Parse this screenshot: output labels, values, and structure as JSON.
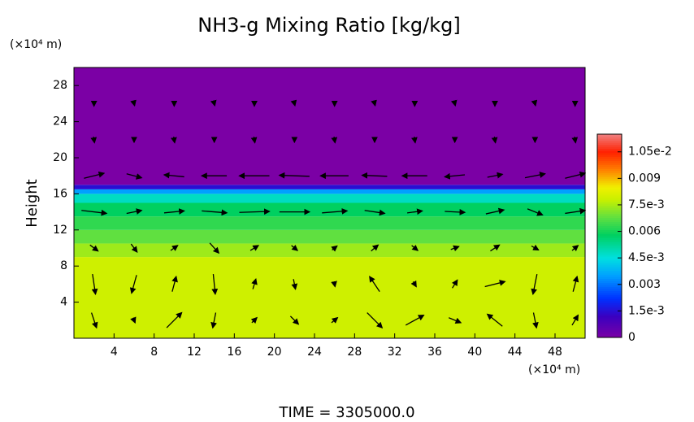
{
  "chart_data": {
    "type": "contour_profile",
    "title": "NH3-g Mixing Ratio [kg/kg]",
    "ylabel": "Height",
    "y_unit": "(×10⁴ m)",
    "x_unit": "(×10⁴ m)",
    "footer": "TIME = 3305000.0",
    "xlim": [
      0,
      51
    ],
    "ylim": [
      0,
      30
    ],
    "xticks": [
      4,
      8,
      12,
      16,
      20,
      24,
      28,
      32,
      36,
      40,
      44,
      48
    ],
    "yticks": [
      4,
      8,
      12,
      16,
      20,
      24,
      28
    ],
    "height_edges": [
      0,
      9,
      10.5,
      12,
      13.5,
      15,
      16,
      16.5,
      17,
      30
    ],
    "values": [
      0.0079,
      0.0074,
      0.0068,
      0.0063,
      0.0058,
      0.0048,
      0.0035,
      0.0015,
      0
    ],
    "clim": [
      0,
      0.0115
    ],
    "colormap": [
      [
        0,
        "#7b00a5"
      ],
      [
        0.0012,
        "#3a00c0"
      ],
      [
        0.0022,
        "#0030ff"
      ],
      [
        0.0035,
        "#00a0ff"
      ],
      [
        0.0045,
        "#00e0e0"
      ],
      [
        0.0058,
        "#00d060"
      ],
      [
        0.0068,
        "#60e040"
      ],
      [
        0.0078,
        "#c8f000"
      ],
      [
        0.0085,
        "#f0f000"
      ],
      [
        0.0095,
        "#ff8000"
      ],
      [
        0.0105,
        "#ff2000"
      ],
      [
        0.0115,
        "#f08080"
      ]
    ],
    "cticks": [
      0,
      {
        "value": 0.0015,
        "label": "1.5e-3"
      },
      0.003,
      {
        "value": 0.0045,
        "label": "4.5e-3"
      },
      0.006,
      {
        "value": 0.0075,
        "label": "7.5e-3"
      },
      0.009,
      {
        "value": 0.0105,
        "label": "1.05e-2"
      }
    ],
    "vectors": {
      "x": [
        2,
        6,
        10,
        14,
        18,
        22,
        26,
        30,
        34,
        38,
        42,
        46,
        50
      ],
      "y": [
        2,
        6,
        10,
        14,
        18,
        22,
        26
      ],
      "u": [
        [
          0.5,
          0.2,
          1.5,
          -0.3,
          0.5,
          0.8,
          0.6,
          1.5,
          1.8,
          1.2,
          -1.5,
          0.3,
          0.6
        ],
        [
          0.3,
          -0.5,
          0.4,
          0.2,
          0.3,
          0.2,
          0.1,
          -1.0,
          0.3,
          0.5,
          2.0,
          -0.4,
          0.4
        ],
        [
          0.8,
          0.6,
          0.7,
          0.9,
          0.8,
          0.6,
          0.5,
          0.7,
          0.6,
          0.8,
          0.9,
          0.7,
          0.6
        ],
        [
          2.5,
          1.5,
          2.0,
          2.5,
          3.0,
          3.0,
          2.5,
          2.0,
          1.5,
          2.0,
          1.8,
          1.5,
          2.0
        ],
        [
          2.0,
          1.5,
          -2.0,
          -2.5,
          -3.0,
          -3.0,
          -2.8,
          -2.5,
          -2.5,
          -2.0,
          1.5,
          2.0,
          2.0
        ],
        [
          0.1,
          0.0,
          0.1,
          0.0,
          0.1,
          0.0,
          0.1,
          0.0,
          0.1,
          0.0,
          0.1,
          0.0,
          0.1
        ],
        [
          0.0,
          0.1,
          0.0,
          0.1,
          0.0,
          0.1,
          0.0,
          0.1,
          0.0,
          0.1,
          0.0,
          0.1,
          0.0
        ]
      ],
      "v": [
        [
          -1.5,
          -0.5,
          1.5,
          -1.5,
          0.5,
          -0.8,
          0.5,
          -1.5,
          1.0,
          -0.5,
          1.2,
          -1.5,
          1.0
        ],
        [
          -2.0,
          -1.8,
          1.5,
          -2.0,
          1.0,
          -1.0,
          -0.5,
          1.5,
          -0.5,
          0.8,
          0.5,
          -2.0,
          1.5
        ],
        [
          -0.6,
          -0.8,
          0.5,
          -1.0,
          0.5,
          -0.5,
          0.4,
          0.6,
          -0.5,
          0.3,
          0.6,
          -0.4,
          0.5
        ],
        [
          -0.3,
          0.3,
          0.2,
          -0.2,
          0.1,
          0.0,
          0.2,
          -0.3,
          0.2,
          -0.1,
          0.4,
          -0.6,
          0.3
        ],
        [
          0.5,
          -0.4,
          0.2,
          0.0,
          0.0,
          0.1,
          0.0,
          0.1,
          0.0,
          -0.2,
          0.3,
          0.4,
          0.5
        ],
        [
          -0.6,
          -0.5,
          -0.6,
          -0.5,
          -0.6,
          -0.5,
          -0.6,
          -0.5,
          -0.6,
          -0.5,
          -0.6,
          -0.5,
          -0.6
        ],
        [
          -0.5,
          -0.4,
          -0.5,
          -0.4,
          -0.5,
          -0.4,
          -0.5,
          -0.4,
          -0.5,
          -0.4,
          -0.5,
          -0.4,
          -0.5
        ]
      ]
    }
  }
}
